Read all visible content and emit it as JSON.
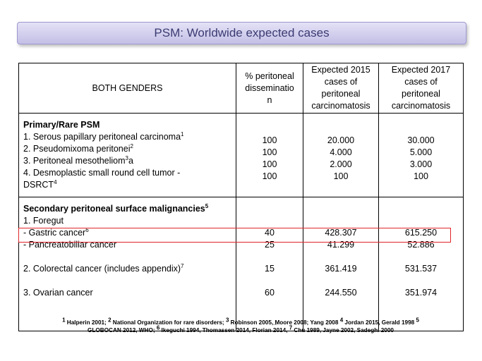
{
  "title": "PSM: Worldwide expected cases",
  "table": {
    "headers": {
      "col1": "BOTH GENDERS",
      "col2": [
        "% peritoneal",
        "disseminatio",
        "n"
      ],
      "col3": [
        "Expected 2015",
        "cases of",
        "peritoneal",
        "carcinomatosis"
      ],
      "col4": [
        "Expected 2017",
        "cases of",
        "peritoneal",
        "carcinomatosis"
      ]
    },
    "primary": {
      "title": "Primary/Rare PSM",
      "rows": [
        {
          "label": "1. Serous papillary peritoneal carcinoma",
          "sup": "1",
          "pct": "100",
          "e2015": "20.000",
          "e2017": "30.000"
        },
        {
          "label": "2. Pseudomixoma peritonei",
          "sup": "2",
          "pct": "100",
          "e2015": "4.000",
          "e2017": "5.000"
        },
        {
          "label": "3. Peritoneal mesotheliom",
          "sup": "3",
          "suffix": "a",
          "pct": "100",
          "e2015": "2.000",
          "e2017": "3.000"
        },
        {
          "label": "4. Desmoplastic small round cell tumor -",
          "label2": "DSRCT",
          "sup": "4",
          "pct": "100",
          "e2015": "100",
          "e2017": "100"
        }
      ]
    },
    "secondary": {
      "title": "Secondary peritoneal surface malignancies",
      "title_sup": "5",
      "foregut": "1. Foregut",
      "rows": [
        {
          "label": "-  Gastric cancer",
          "sup": "6",
          "pct": "40",
          "e2015": "428.307",
          "e2017": "615.250"
        },
        {
          "label": "-  Pancreatobiliar cancer",
          "sup": "",
          "pct": "25",
          "e2015": "41.299",
          "e2017": "52.886"
        },
        {
          "label": "2. Colorectal cancer (includes appendix)",
          "sup": "7",
          "pct": "15",
          "e2015": "361.419",
          "e2017": "531.537"
        },
        {
          "label": "3. Ovarian cancer",
          "sup": "",
          "pct": "60",
          "e2015": "244.550",
          "e2017": "351.974"
        }
      ]
    }
  },
  "footnote": {
    "line1": [
      {
        "sup": "1",
        "text": " Halperin 2001; "
      },
      {
        "sup": "2",
        "text": " National Organization for rare disorders; "
      },
      {
        "sup": "3",
        "text": " Robinson 2005, ̲Moore 2008; Yang 2008 "
      },
      {
        "sup": "4",
        "text": " Jordan 2015, Gerald 1998 "
      },
      {
        "sup": "5",
        "text": ""
      }
    ],
    "line2": [
      {
        "sup": "",
        "text": "GLOBOCAN 2012, WHO; "
      },
      {
        "sup": "6",
        "text": " Ikeguchi 1994, Thomassen 2014, Florian 2014, "
      },
      {
        "sup": "7",
        "text": " Chu 1989, Jayne 2002, Sadeghi 2000"
      }
    ]
  },
  "colors": {
    "highlight": "#e0242b",
    "title_text": "#3b3b72",
    "title_bg": "#d4d1ee"
  }
}
